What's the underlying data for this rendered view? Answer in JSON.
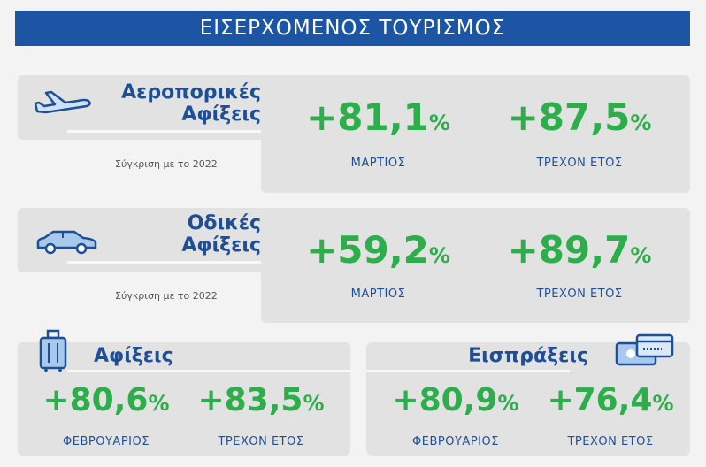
{
  "header": {
    "title": "ΕΙΣΕΡΧΟΜΕΝΟΣ ΤΟΥΡΙΣΜΟΣ"
  },
  "air": {
    "title1": "Αεροπορικές",
    "title2": "Αφίξεις",
    "comparison": "Σύγκριση με το 2022",
    "month_value": "+81,1",
    "month_unit": "%",
    "month_label": "ΜΑΡΤΙΟΣ",
    "year_value": "+87,5",
    "year_unit": "%",
    "year_label": "ΤΡΕΧΟΝ ΕΤΟΣ",
    "icon": "airplane-icon"
  },
  "road": {
    "title1": "Οδικές",
    "title2": "Αφίξεις",
    "comparison": "Σύγκριση με το 2022",
    "month_value": "+59,2",
    "month_unit": "%",
    "month_label": "ΜΑΡΤΙΟΣ",
    "year_value": "+89,7",
    "year_unit": "%",
    "year_label": "ΤΡΕΧΟΝ ΕΤΟΣ",
    "icon": "car-icon"
  },
  "arrivals": {
    "title": "Αφίξεις",
    "month_value": "+80,6",
    "month_unit": "%",
    "month_label": "ΦΕΒΡΟΥΑΡΙΟΣ",
    "year_value": "+83,5",
    "year_unit": "%",
    "year_label": "ΤΡΕΧΟΝ ΕΤΟΣ",
    "icon": "luggage-icon"
  },
  "receipts": {
    "title": "Εισπράξεις",
    "month_value": "+80,9",
    "month_unit": "%",
    "month_label": "ΦΕΒΡΟΥΑΡΙΟΣ",
    "year_value": "+76,4",
    "year_unit": "%",
    "year_label": "ΤΡΕΧΟΝ ΕΤΟΣ",
    "icon": "credit-card-icon"
  },
  "colors": {
    "blue": "#1b55a3",
    "green": "#2cae4a",
    "panel": "#e2e2e2"
  }
}
